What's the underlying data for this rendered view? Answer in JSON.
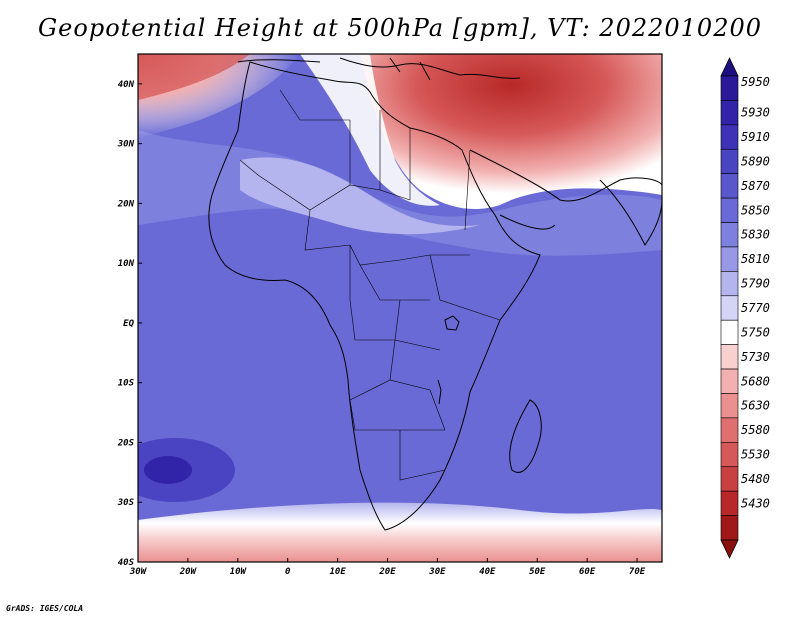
{
  "title": "Geopotential Height at 500hPa [gpm], VT: 2022010200",
  "credit": "GrADS: IGES/COLA",
  "map": {
    "lon_ticks": [
      "30W",
      "20W",
      "10W",
      "0",
      "10E",
      "20E",
      "30E",
      "40E",
      "50E",
      "60E",
      "70E"
    ],
    "lat_ticks": [
      "40N",
      "30N",
      "20N",
      "10N",
      "EQ",
      "10S",
      "20S",
      "30S",
      "40S"
    ],
    "lon_range": [
      -30,
      75
    ],
    "lat_range": [
      -40,
      45
    ]
  },
  "colorbar": {
    "levels": [
      "5950",
      "5930",
      "5910",
      "5890",
      "5870",
      "5850",
      "5830",
      "5810",
      "5790",
      "5770",
      "5750",
      "5730",
      "5680",
      "5630",
      "5580",
      "5530",
      "5480",
      "5430"
    ],
    "colors": [
      "#2a1a9a",
      "#3224a8",
      "#3e33b6",
      "#4b44c2",
      "#5a57cc",
      "#6a6ad6",
      "#7e80de",
      "#9898e6",
      "#b4b4ee",
      "#d4d4f6",
      "#ffffff",
      "#f8d0d0",
      "#f2b0b0",
      "#ea9090",
      "#e07070",
      "#d65858",
      "#c84040",
      "#b82828",
      "#a01818"
    ],
    "top_color": "#1e1080",
    "bottom_color": "#8a1010"
  },
  "colors": {
    "map_base": "#6a6ad6",
    "outline": "#000000"
  }
}
